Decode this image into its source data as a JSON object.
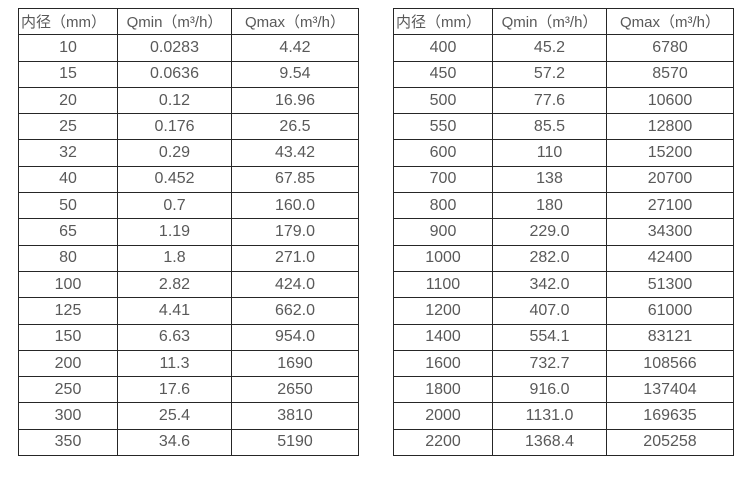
{
  "page": {
    "background_color": "#ffffff",
    "text_color": "#595959",
    "border_color": "#262626"
  },
  "tables": [
    {
      "name": "flow-table-small-diameters",
      "headers": [
        "内径（mm）",
        "Qmin（m³/h）",
        "Qmax（m³/h）"
      ],
      "rows": [
        [
          "10",
          "0.0283",
          "4.42"
        ],
        [
          "15",
          "0.0636",
          "9.54"
        ],
        [
          "20",
          "0.12",
          "16.96"
        ],
        [
          "25",
          "0.176",
          "26.5"
        ],
        [
          "32",
          "0.29",
          "43.42"
        ],
        [
          "40",
          "0.452",
          "67.85"
        ],
        [
          "50",
          "0.7",
          "160.0"
        ],
        [
          "65",
          "1.19",
          "179.0"
        ],
        [
          "80",
          "1.8",
          "271.0"
        ],
        [
          "100",
          "2.82",
          "424.0"
        ],
        [
          "125",
          "4.41",
          "662.0"
        ],
        [
          "150",
          "6.63",
          "954.0"
        ],
        [
          "200",
          "11.3",
          "1690"
        ],
        [
          "250",
          "17.6",
          "2650"
        ],
        [
          "300",
          "25.4",
          "3810"
        ],
        [
          "350",
          "34.6",
          "5190"
        ]
      ]
    },
    {
      "name": "flow-table-large-diameters",
      "headers": [
        "内径（mm）",
        "Qmin（m³/h）",
        "Qmax（m³/h）"
      ],
      "rows": [
        [
          "400",
          "45.2",
          "6780"
        ],
        [
          "450",
          "57.2",
          "8570"
        ],
        [
          "500",
          "77.6",
          "10600"
        ],
        [
          "550",
          "85.5",
          "12800"
        ],
        [
          "600",
          "110",
          "15200"
        ],
        [
          "700",
          "138",
          "20700"
        ],
        [
          "800",
          "180",
          "27100"
        ],
        [
          "900",
          "229.0",
          "34300"
        ],
        [
          "1000",
          "282.0",
          "42400"
        ],
        [
          "1100",
          "342.0",
          "51300"
        ],
        [
          "1200",
          "407.0",
          "61000"
        ],
        [
          "1400",
          "554.1",
          "83121"
        ],
        [
          "1600",
          "732.7",
          "108566"
        ],
        [
          "1800",
          "916.0",
          "137404"
        ],
        [
          "2000",
          "1131.0",
          "169635"
        ],
        [
          "2200",
          "1368.4",
          "205258"
        ]
      ]
    }
  ]
}
